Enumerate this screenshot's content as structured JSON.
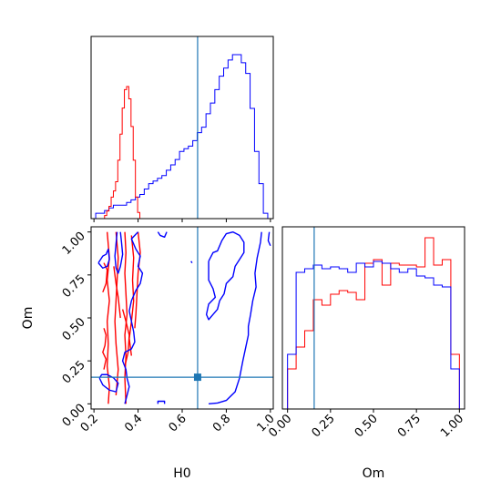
{
  "chart_data": {
    "type": "corner",
    "parameters": [
      "H0",
      "Om"
    ],
    "truth": {
      "H0": 0.67,
      "Om": 0.155
    },
    "colors": {
      "truth": "#1f77b4",
      "series_a": "#ff0000",
      "series_b": "#0000ff",
      "axes": "#000000"
    },
    "axes": {
      "H0": {
        "label": "H0",
        "range": [
          0.2,
          1.0
        ],
        "ticks": [
          0.2,
          0.4,
          0.6,
          0.8,
          1.0
        ],
        "tick_labels": [
          "0.2",
          "0.4",
          "0.6",
          "0.8",
          "1.0"
        ]
      },
      "Om": {
        "label": "Om",
        "range": [
          0.0,
          1.0
        ],
        "ticks": [
          0.0,
          0.25,
          0.5,
          0.75,
          1.0
        ],
        "tick_labels": [
          "0.00",
          "0.25",
          "0.50",
          "0.75",
          "1.00"
        ]
      }
    },
    "hist_H0": {
      "bin_edges": [
        0.208,
        0.228,
        0.248,
        0.268,
        0.288,
        0.308,
        0.328,
        0.348,
        0.368,
        0.388,
        0.408,
        0.428,
        0.448,
        0.468,
        0.488,
        0.508,
        0.528,
        0.548,
        0.568,
        0.588,
        0.608,
        0.628,
        0.648,
        0.668,
        0.688,
        0.708,
        0.728,
        0.748,
        0.768,
        0.788,
        0.808,
        0.828,
        0.848,
        0.868,
        0.888,
        0.908,
        0.928,
        0.948,
        0.968,
        0.988
      ],
      "red_x": [
        0.243,
        0.253,
        0.263,
        0.273,
        0.283,
        0.293,
        0.303,
        0.313,
        0.323,
        0.333,
        0.343,
        0.353,
        0.363,
        0.373,
        0.383,
        0.393,
        0.403,
        0.413
      ],
      "red": [
        0,
        2,
        5,
        8,
        14,
        18,
        24,
        38,
        55,
        72,
        84,
        86,
        78,
        60,
        38,
        14,
        4,
        0
      ],
      "blue": [
        2,
        2,
        3,
        4,
        5,
        5,
        5,
        6,
        7,
        8,
        9,
        11,
        13,
        14,
        15,
        16,
        18,
        20,
        22,
        25,
        26,
        27,
        29,
        32,
        34,
        39,
        43,
        48,
        53,
        56,
        59,
        61,
        61,
        58,
        54,
        41,
        25,
        13,
        2
      ]
    },
    "hist_Om": {
      "bin_edges": [
        0.0,
        0.05,
        0.1,
        0.15,
        0.2,
        0.25,
        0.3,
        0.35,
        0.4,
        0.45,
        0.5,
        0.55,
        0.6,
        0.65,
        0.7,
        0.75,
        0.8,
        0.85,
        0.9,
        0.95,
        1.0
      ],
      "red": [
        0.22,
        0.34,
        0.43,
        0.6,
        0.57,
        0.63,
        0.65,
        0.64,
        0.6,
        0.8,
        0.82,
        0.68,
        0.8,
        0.79,
        0.79,
        0.78,
        0.94,
        0.79,
        0.82,
        0.3
      ],
      "blue": [
        0.3,
        0.75,
        0.77,
        0.79,
        0.77,
        0.78,
        0.77,
        0.75,
        0.8,
        0.78,
        0.81,
        0.8,
        0.77,
        0.75,
        0.77,
        0.73,
        0.72,
        0.68,
        0.67,
        0.22
      ]
    },
    "contours_red": [
      [
        [
          0.26,
          1.0
        ],
        [
          0.27,
          0.85
        ],
        [
          0.26,
          0.72
        ],
        [
          0.27,
          0.6
        ],
        [
          0.26,
          0.48
        ],
        [
          0.265,
          0.35
        ],
        [
          0.26,
          0.22
        ],
        [
          0.27,
          0.1
        ],
        [
          0.265,
          0.0
        ]
      ],
      [
        [
          0.245,
          0.82
        ],
        [
          0.26,
          0.78
        ],
        [
          0.255,
          0.7
        ],
        [
          0.24,
          0.65
        ]
      ],
      [
        [
          0.245,
          0.44
        ],
        [
          0.255,
          0.4
        ],
        [
          0.25,
          0.34
        ],
        [
          0.24,
          0.3
        ],
        [
          0.255,
          0.26
        ],
        [
          0.245,
          0.2
        ]
      ],
      [
        [
          0.3,
          1.0
        ],
        [
          0.31,
          0.85
        ],
        [
          0.305,
          0.72
        ],
        [
          0.3,
          0.6
        ],
        [
          0.295,
          0.48
        ],
        [
          0.3,
          0.35
        ],
        [
          0.31,
          0.2
        ],
        [
          0.3,
          0.05
        ]
      ],
      [
        [
          0.34,
          1.0
        ],
        [
          0.345,
          0.88
        ],
        [
          0.34,
          0.76
        ],
        [
          0.345,
          0.64
        ],
        [
          0.35,
          0.52
        ],
        [
          0.34,
          0.4
        ],
        [
          0.345,
          0.28
        ],
        [
          0.34,
          0.15
        ],
        [
          0.345,
          0.0
        ]
      ],
      [
        [
          0.37,
          0.98
        ],
        [
          0.38,
          0.85
        ],
        [
          0.375,
          0.72
        ],
        [
          0.38,
          0.6
        ],
        [
          0.37,
          0.48
        ],
        [
          0.36,
          0.38
        ],
        [
          0.37,
          0.28
        ]
      ],
      [
        [
          0.4,
          1.0
        ],
        [
          0.41,
          0.88
        ],
        [
          0.4,
          0.76
        ],
        [
          0.395,
          0.64
        ],
        [
          0.39,
          0.52
        ],
        [
          0.385,
          0.44
        ]
      ],
      [
        [
          0.33,
          0.55
        ],
        [
          0.345,
          0.48
        ],
        [
          0.36,
          0.4
        ],
        [
          0.355,
          0.3
        ],
        [
          0.34,
          0.22
        ]
      ],
      [
        [
          0.29,
          0.8
        ],
        [
          0.3,
          0.7
        ],
        [
          0.31,
          0.62
        ],
        [
          0.32,
          0.5
        ]
      ]
    ],
    "contours_blue": [
      [
        [
          0.4,
          1.0
        ],
        [
          0.37,
          0.96
        ],
        [
          0.39,
          0.9
        ],
        [
          0.41,
          0.86
        ],
        [
          0.4,
          0.8
        ],
        [
          0.42,
          0.76
        ],
        [
          0.41,
          0.7
        ],
        [
          0.39,
          0.66
        ],
        [
          0.37,
          0.6
        ],
        [
          0.36,
          0.54
        ],
        [
          0.37,
          0.48
        ],
        [
          0.38,
          0.42
        ],
        [
          0.385,
          0.36
        ],
        [
          0.37,
          0.32
        ],
        [
          0.34,
          0.3
        ],
        [
          0.33,
          0.25
        ],
        [
          0.345,
          0.2
        ],
        [
          0.35,
          0.15
        ],
        [
          0.36,
          0.1
        ],
        [
          0.35,
          0.05
        ],
        [
          0.34,
          0.0
        ]
      ],
      [
        [
          0.49,
          1.0
        ],
        [
          0.5,
          0.98
        ],
        [
          0.52,
          0.97
        ],
        [
          0.53,
          1.0
        ]
      ],
      [
        [
          0.22,
          0.82
        ],
        [
          0.24,
          0.86
        ],
        [
          0.255,
          0.87
        ],
        [
          0.265,
          0.9
        ],
        [
          0.27,
          0.84
        ],
        [
          0.26,
          0.8
        ],
        [
          0.24,
          0.79
        ],
        [
          0.22,
          0.82
        ]
      ],
      [
        [
          0.32,
          1.0
        ],
        [
          0.325,
          0.94
        ],
        [
          0.33,
          0.87
        ],
        [
          0.32,
          0.8
        ],
        [
          0.31,
          0.76
        ],
        [
          0.3,
          0.79
        ],
        [
          0.295,
          0.86
        ],
        [
          0.3,
          0.93
        ],
        [
          0.305,
          1.0
        ]
      ],
      [
        [
          0.225,
          0.15
        ],
        [
          0.24,
          0.11
        ],
        [
          0.27,
          0.08
        ],
        [
          0.3,
          0.07
        ],
        [
          0.31,
          0.12
        ],
        [
          0.29,
          0.15
        ],
        [
          0.26,
          0.17
        ],
        [
          0.235,
          0.17
        ],
        [
          0.225,
          0.15
        ]
      ],
      [
        [
          0.72,
          0.83
        ],
        [
          0.74,
          0.88
        ],
        [
          0.76,
          0.89
        ],
        [
          0.78,
          0.95
        ],
        [
          0.8,
          0.99
        ],
        [
          0.83,
          1.0
        ],
        [
          0.86,
          0.98
        ],
        [
          0.88,
          0.94
        ],
        [
          0.88,
          0.88
        ],
        [
          0.86,
          0.84
        ],
        [
          0.84,
          0.8
        ],
        [
          0.83,
          0.74
        ],
        [
          0.8,
          0.7
        ],
        [
          0.79,
          0.64
        ],
        [
          0.77,
          0.6
        ],
        [
          0.76,
          0.55
        ],
        [
          0.74,
          0.52
        ],
        [
          0.72,
          0.49
        ],
        [
          0.71,
          0.52
        ],
        [
          0.72,
          0.58
        ],
        [
          0.75,
          0.62
        ],
        [
          0.74,
          0.67
        ],
        [
          0.72,
          0.72
        ],
        [
          0.72,
          0.78
        ],
        [
          0.72,
          0.83
        ]
      ],
      [
        [
          0.96,
          1.0
        ],
        [
          0.955,
          0.94
        ],
        [
          0.94,
          0.85
        ],
        [
          0.93,
          0.76
        ],
        [
          0.935,
          0.68
        ],
        [
          0.92,
          0.6
        ],
        [
          0.91,
          0.52
        ],
        [
          0.9,
          0.45
        ],
        [
          0.9,
          0.4
        ],
        [
          0.89,
          0.34
        ],
        [
          0.875,
          0.25
        ],
        [
          0.86,
          0.15
        ],
        [
          0.84,
          0.07
        ],
        [
          0.8,
          0.02
        ],
        [
          0.76,
          0.005
        ],
        [
          0.72,
          0.0
        ]
      ],
      [
        [
          0.995,
          1.0
        ],
        [
          0.99,
          0.95
        ],
        [
          1.0,
          0.92
        ]
      ],
      [
        [
          0.64,
          0.83
        ],
        [
          0.645,
          0.82
        ]
      ],
      [
        [
          0.49,
          0.0
        ],
        [
          0.49,
          0.015
        ],
        [
          0.52,
          0.015
        ],
        [
          0.52,
          0.0
        ]
      ]
    ]
  }
}
